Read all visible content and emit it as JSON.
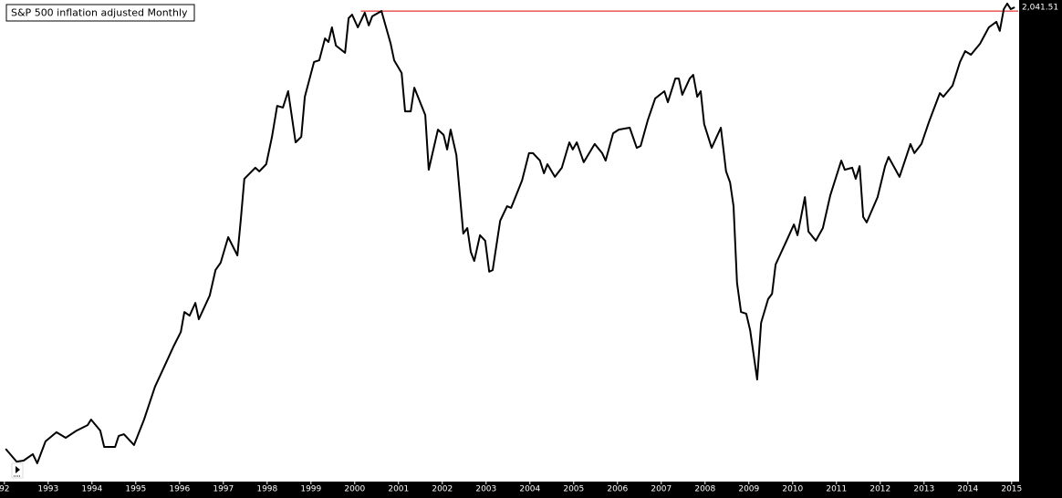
{
  "chart_data": {
    "type": "line",
    "title": "S&P 500 inflation adjusted Monthly",
    "x": [
      1992.03,
      1992.28,
      1992.44,
      1992.65,
      1992.75,
      1992.94,
      1993.19,
      1993.4,
      1993.65,
      1993.9,
      1993.98,
      1994.19,
      1994.28,
      1994.53,
      1994.61,
      1994.73,
      1994.96,
      1995.19,
      1995.44,
      1995.65,
      1995.86,
      1996.03,
      1996.11,
      1996.23,
      1996.36,
      1996.44,
      1996.69,
      1996.82,
      1996.94,
      1997.11,
      1997.32,
      1997.4,
      1997.48,
      1997.73,
      1997.82,
      1997.98,
      1998.11,
      1998.23,
      1998.36,
      1998.48,
      1998.65,
      1998.78,
      1998.86,
      1999.07,
      1999.19,
      1999.32,
      1999.4,
      1999.48,
      1999.57,
      1999.78,
      1999.86,
      1999.94,
      2000.07,
      2000.23,
      2000.32,
      2000.4,
      2000.61,
      2000.82,
      2000.9,
      2001.07,
      2001.15,
      2001.28,
      2001.36,
      2001.61,
      2001.69,
      2001.9,
      2002.03,
      2002.11,
      2002.19,
      2002.32,
      2002.48,
      2002.57,
      2002.65,
      2002.73,
      2002.86,
      2002.98,
      2003.07,
      2003.15,
      2003.32,
      2003.48,
      2003.57,
      2003.82,
      2003.98,
      2004.07,
      2004.23,
      2004.32,
      2004.4,
      2004.57,
      2004.73,
      2004.9,
      2004.98,
      2005.07,
      2005.23,
      2005.48,
      2005.65,
      2005.73,
      2005.9,
      2006.03,
      2006.28,
      2006.44,
      2006.53,
      2006.69,
      2006.86,
      2007.07,
      2007.15,
      2007.32,
      2007.4,
      2007.48,
      2007.65,
      2007.73,
      2007.82,
      2007.9,
      2007.98,
      2008.15,
      2008.36,
      2008.48,
      2008.57,
      2008.65,
      2008.73,
      2008.82,
      2008.94,
      2009.03,
      2009.19,
      2009.28,
      2009.44,
      2009.53,
      2009.61,
      2009.86,
      2010.03,
      2010.11,
      2010.28,
      2010.36,
      2010.53,
      2010.69,
      2010.86,
      2011.11,
      2011.19,
      2011.36,
      2011.44,
      2011.53,
      2011.61,
      2011.69,
      2011.94,
      2012.11,
      2012.19,
      2012.44,
      2012.69,
      2012.78,
      2012.94,
      2013.11,
      2013.36,
      2013.44,
      2013.65,
      2013.82,
      2013.94,
      2014.07,
      2014.28,
      2014.48,
      2014.65,
      2014.73,
      2014.82,
      2014.9,
      2014.98,
      2015.07
    ],
    "series": [
      {
        "color": "#000000",
        "values": [
          686,
          647,
          650,
          670,
          642,
          709,
          737,
          720,
          742,
          759,
          776,
          742,
          692,
          692,
          726,
          731,
          698,
          776,
          877,
          938,
          1000,
          1045,
          1106,
          1095,
          1134,
          1084,
          1157,
          1235,
          1258,
          1336,
          1280,
          1392,
          1515,
          1549,
          1538,
          1560,
          1644,
          1739,
          1734,
          1784,
          1627,
          1644,
          1767,
          1874,
          1879,
          1946,
          1935,
          1980,
          1924,
          1902,
          2008,
          2019,
          1980,
          2025,
          1986,
          2014,
          2030,
          1930,
          1879,
          1840,
          1722,
          1722,
          1795,
          1711,
          1543,
          1666,
          1650,
          1605,
          1666,
          1588,
          1347,
          1364,
          1291,
          1263,
          1342,
          1325,
          1230,
          1235,
          1386,
          1431,
          1426,
          1510,
          1594,
          1594,
          1571,
          1532,
          1560,
          1521,
          1549,
          1627,
          1605,
          1627,
          1566,
          1622,
          1594,
          1571,
          1655,
          1666,
          1672,
          1610,
          1616,
          1694,
          1762,
          1784,
          1750,
          1823,
          1823,
          1773,
          1823,
          1834,
          1767,
          1784,
          1683,
          1610,
          1672,
          1538,
          1504,
          1431,
          1196,
          1106,
          1101,
          1050,
          899,
          1073,
          1146,
          1162,
          1252,
          1325,
          1375,
          1342,
          1459,
          1353,
          1325,
          1364,
          1465,
          1571,
          1543,
          1549,
          1515,
          1554,
          1398,
          1381,
          1459,
          1554,
          1582,
          1521,
          1622,
          1594,
          1622,
          1689,
          1778,
          1767,
          1801,
          1874,
          1907,
          1896,
          1930,
          1980,
          1997,
          1969,
          2036,
          2053,
          2036,
          2041.51
        ]
      }
    ],
    "reference_line": {
      "value": 2030,
      "color": "#e00000"
    },
    "last_label": {
      "value": 2041.51,
      "label": "2,041.51"
    },
    "xlim": [
      1991.9,
      2015.15
    ],
    "ylim": [
      585.6,
      2064
    ],
    "xticks": [
      {
        "value": 1992,
        "label": "92"
      },
      1993,
      1994,
      1995,
      1996,
      1997,
      1998,
      1999,
      2000,
      2001,
      2002,
      2003,
      2004,
      2005,
      2006,
      2007,
      2008,
      2009,
      2010,
      2011,
      2012,
      2013,
      2014,
      2015
    ]
  }
}
